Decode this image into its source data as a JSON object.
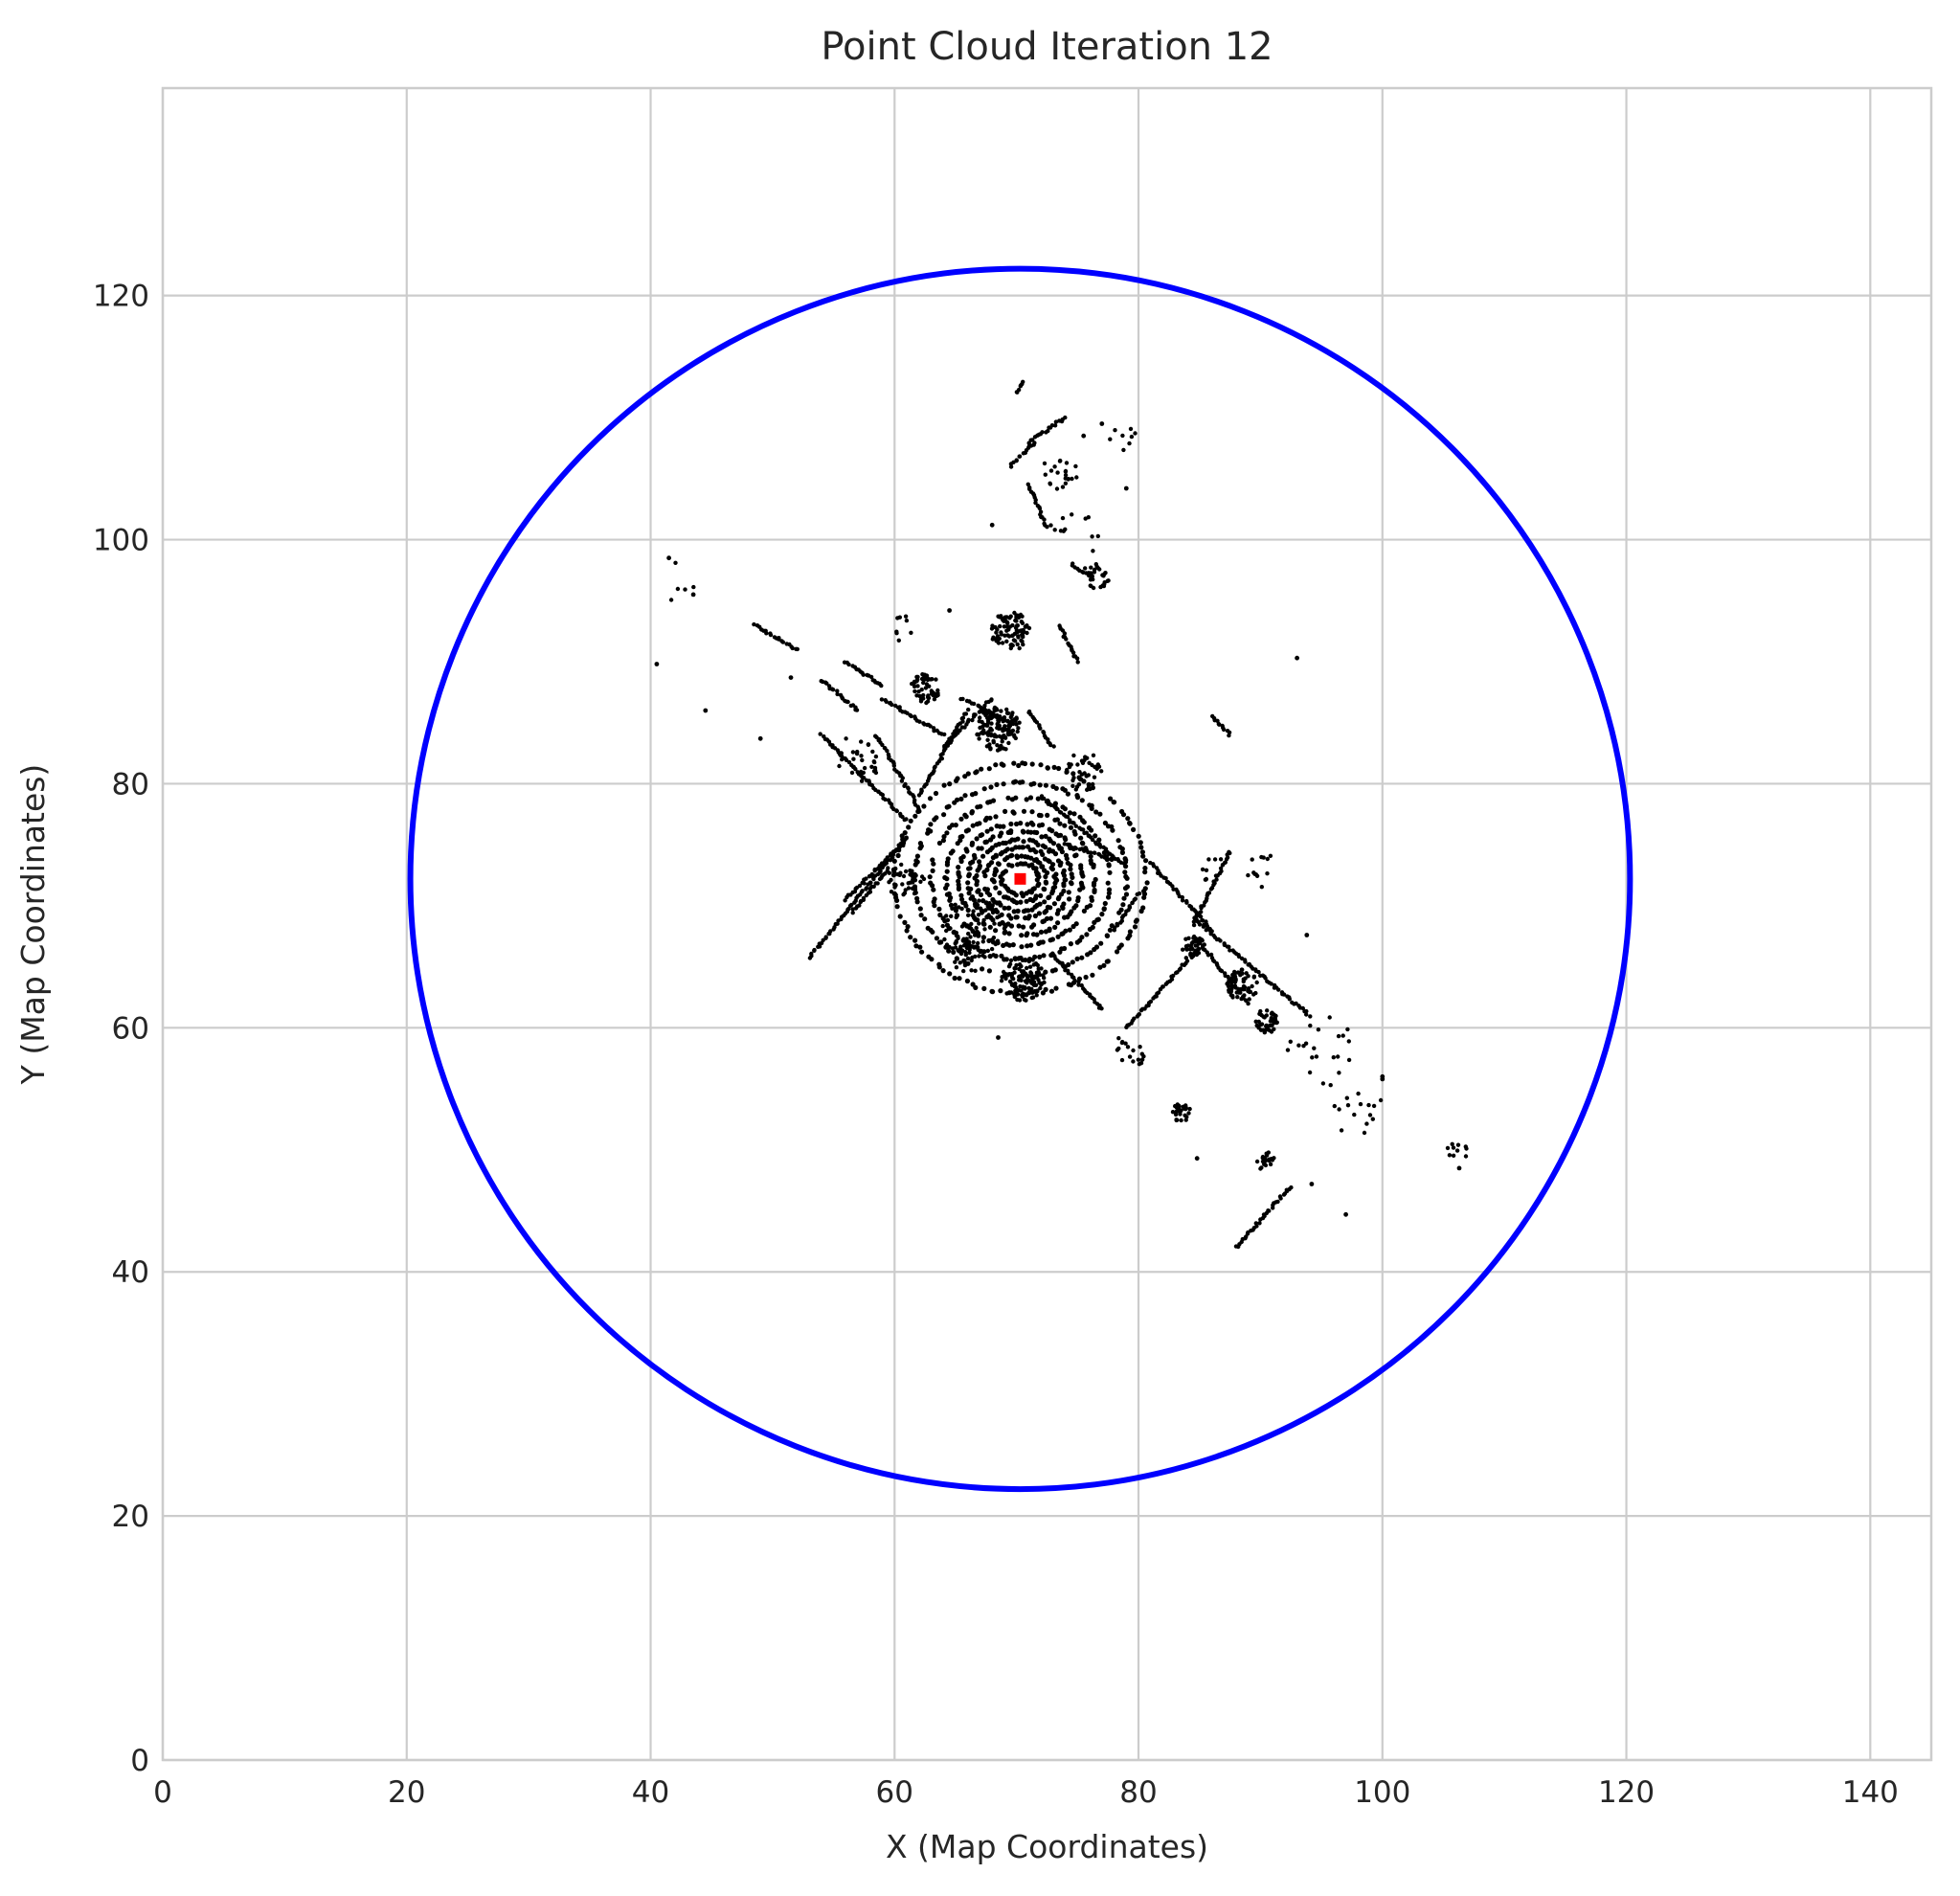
{
  "chart_data": {
    "type": "scatter",
    "title": "Point Cloud Iteration 12",
    "xlabel": "X (Map Coordinates)",
    "ylabel": "Y (Map Coordinates)",
    "xlim": [
      0,
      145
    ],
    "ylim": [
      0,
      137
    ],
    "xticks": [
      0,
      20,
      40,
      60,
      80,
      100,
      120,
      140
    ],
    "yticks": [
      0,
      20,
      40,
      60,
      80,
      100,
      120
    ],
    "grid": true,
    "colors": {
      "points": "#000000",
      "circle": "#0000ff",
      "center_marker": "#ff0000",
      "grid": "#cccccc",
      "spine": "#cccccc"
    },
    "circle": {
      "center": [
        70.3,
        72.2
      ],
      "radius": 50
    },
    "center_marker": {
      "x": 70.3,
      "y": 72.2
    },
    "point_segments": [
      [
        [
          56.5,
          69.5
        ],
        [
          59.5,
          73
        ]
      ],
      [
        [
          53,
          65.8
        ],
        [
          61,
          75.5
        ]
      ],
      [
        [
          56,
          70.5
        ],
        [
          61,
          75.5
        ]
      ],
      [
        [
          54,
          84
        ],
        [
          61,
          77
        ]
      ],
      [
        [
          58.5,
          84
        ],
        [
          62,
          78
        ]
      ],
      [
        [
          62,
          79
        ],
        [
          66,
          86
        ]
      ],
      [
        [
          64,
          83
        ],
        [
          68,
          87
        ]
      ],
      [
        [
          59,
          87
        ],
        [
          64,
          84
        ]
      ],
      [
        [
          56,
          90
        ],
        [
          59,
          88
        ]
      ],
      [
        [
          48.5,
          93
        ],
        [
          52,
          91
        ]
      ],
      [
        [
          54,
          88.5
        ],
        [
          57,
          86
        ]
      ],
      [
        [
          71,
          86
        ],
        [
          73,
          83
        ]
      ],
      [
        [
          72,
          79
        ],
        [
          78,
          74
        ]
      ],
      [
        [
          74,
          75
        ],
        [
          79,
          73.5
        ]
      ],
      [
        [
          73,
          66
        ],
        [
          77,
          61.5
        ]
      ],
      [
        [
          81,
          73.5
        ],
        [
          86,
          68
        ]
      ],
      [
        [
          84.5,
          68.5
        ],
        [
          87.5,
          74.5
        ]
      ],
      [
        [
          84.5,
          69
        ],
        [
          94,
          61
        ]
      ],
      [
        [
          85,
          67
        ],
        [
          89,
          62
        ]
      ],
      [
        [
          88,
          42
        ],
        [
          92.5,
          47
        ]
      ],
      [
        [
          79,
          60
        ],
        [
          84,
          65.5
        ]
      ],
      [
        [
          78,
          68
        ],
        [
          80,
          71
        ]
      ],
      [
        [
          65.5,
          87
        ],
        [
          69.5,
          85
        ]
      ],
      [
        [
          76,
          97
        ],
        [
          74.5,
          98
        ]
      ],
      [
        [
          71,
          104.5
        ],
        [
          72.5,
          101
        ]
      ],
      [
        [
          69.5,
          106
        ],
        [
          71.5,
          108
        ]
      ],
      [
        [
          74,
          110
        ],
        [
          71,
          108
        ]
      ],
      [
        [
          70,
          112
        ],
        [
          70.5,
          113
        ]
      ],
      [
        [
          73.5,
          93
        ],
        [
          75,
          90
        ]
      ],
      [
        [
          86,
          85.5
        ],
        [
          87.5,
          84
        ]
      ]
    ],
    "point_clusters": [
      {
        "cx": 68.5,
        "cy": 84.5,
        "r": 1.8,
        "n": 130
      },
      {
        "cx": 69.5,
        "cy": 92.5,
        "r": 1.6,
        "n": 90
      },
      {
        "cx": 62.5,
        "cy": 87.8,
        "r": 1.2,
        "n": 55
      },
      {
        "cx": 70.5,
        "cy": 64,
        "r": 1.8,
        "n": 110
      },
      {
        "cx": 66.5,
        "cy": 68,
        "r": 2.6,
        "n": 90
      },
      {
        "cx": 84.5,
        "cy": 66.5,
        "r": 1,
        "n": 40
      },
      {
        "cx": 88.5,
        "cy": 63.5,
        "r": 1.3,
        "n": 55
      },
      {
        "cx": 90.5,
        "cy": 60.5,
        "r": 1,
        "n": 40
      },
      {
        "cx": 83.5,
        "cy": 53,
        "r": 0.8,
        "n": 28
      },
      {
        "cx": 90.5,
        "cy": 49,
        "r": 0.8,
        "n": 22
      },
      {
        "cx": 76.5,
        "cy": 97,
        "r": 1.2,
        "n": 28
      },
      {
        "cx": 73.5,
        "cy": 105.5,
        "r": 1.5,
        "n": 22
      },
      {
        "cx": 75.5,
        "cy": 81,
        "r": 1.6,
        "n": 40
      },
      {
        "cx": 61,
        "cy": 72,
        "r": 1.6,
        "n": 35
      },
      {
        "cx": 66,
        "cy": 66,
        "r": 1.5,
        "n": 35
      },
      {
        "cx": 79.5,
        "cy": 58.5,
        "r": 1.6,
        "n": 18
      },
      {
        "cx": 95,
        "cy": 58,
        "r": 3,
        "n": 22
      },
      {
        "cx": 106,
        "cy": 50,
        "r": 1,
        "n": 10
      },
      {
        "cx": 57,
        "cy": 82,
        "r": 2,
        "n": 30
      },
      {
        "cx": 42,
        "cy": 97,
        "r": 2,
        "n": 5
      },
      {
        "cx": 98,
        "cy": 53,
        "r": 2.2,
        "n": 15
      },
      {
        "cx": 75,
        "cy": 101,
        "r": 2.5,
        "n": 12
      },
      {
        "cx": 78.5,
        "cy": 108.5,
        "r": 1.5,
        "n": 8
      },
      {
        "cx": 60.5,
        "cy": 92.5,
        "r": 1.3,
        "n": 8
      },
      {
        "cx": 90,
        "cy": 73,
        "r": 1.5,
        "n": 12
      },
      {
        "cx": 86,
        "cy": 73.5,
        "r": 1.5,
        "n": 10
      }
    ],
    "point_singles": [
      [
        40.5,
        89.8
      ],
      [
        41.5,
        98.5
      ],
      [
        44.5,
        86
      ],
      [
        49,
        83.7
      ],
      [
        43.5,
        95.5
      ],
      [
        51.5,
        88.7
      ],
      [
        93,
        90.3
      ],
      [
        97,
        44.7
      ],
      [
        100,
        55.8
      ],
      [
        106.3,
        48.5
      ],
      [
        93.8,
        67.6
      ],
      [
        68.5,
        59.2
      ],
      [
        64.5,
        94.2
      ],
      [
        68,
        101.2
      ],
      [
        79,
        104.2
      ],
      [
        75.5,
        108.5
      ],
      [
        77,
        109.5
      ],
      [
        94.2,
        47.2
      ],
      [
        84.8,
        49.3
      ],
      [
        100,
        56
      ]
    ],
    "rings": [
      {
        "rx": 1.5,
        "ry": 1.3,
        "n": 40
      },
      {
        "rx": 2.2,
        "ry": 1.9,
        "n": 55
      },
      {
        "rx": 2.9,
        "ry": 2.6,
        "n": 70
      },
      {
        "rx": 3.6,
        "ry": 3.2,
        "n": 80
      },
      {
        "rx": 4.3,
        "ry": 3.9,
        "n": 90
      },
      {
        "rx": 5.1,
        "ry": 4.6,
        "n": 100
      },
      {
        "rx": 6.1,
        "ry": 5.5,
        "n": 110
      },
      {
        "rx": 7.3,
        "ry": 6.6,
        "n": 120
      },
      {
        "rx": 8.7,
        "ry": 7.9,
        "n": 130
      },
      {
        "rx": 10.3,
        "ry": 9.4,
        "n": 140
      }
    ]
  }
}
